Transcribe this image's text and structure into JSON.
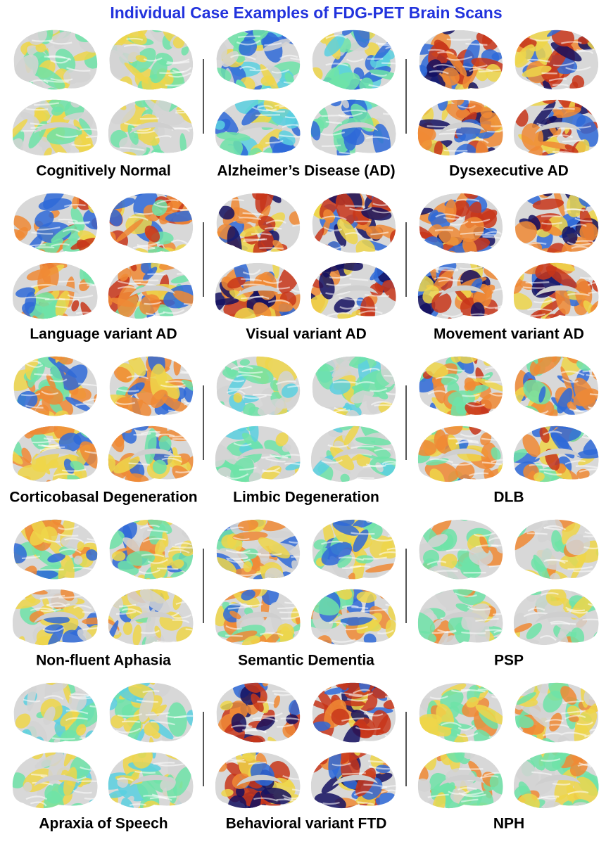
{
  "header": {
    "title": "Individual Case Examples of FDG-PET Brain Scans"
  },
  "panels": [
    {
      "label": "Cognitively Normal"
    },
    {
      "label": "Alzheimer’s Disease (AD)"
    },
    {
      "label": "Dysexecutive AD"
    },
    {
      "label": "Language variant AD"
    },
    {
      "label": "Visual variant AD"
    },
    {
      "label": "Movement variant AD"
    },
    {
      "label": "Corticobasal Degeneration"
    },
    {
      "label": "Limbic Degeneration"
    },
    {
      "label": "DLB"
    },
    {
      "label": "Non-fluent Aphasia"
    },
    {
      "label": "Semantic Dementia"
    },
    {
      "label": "PSP"
    },
    {
      "label": "Apraxia of Speech"
    },
    {
      "label": "Behavioral variant FTD"
    },
    {
      "label": "NPH"
    }
  ]
}
